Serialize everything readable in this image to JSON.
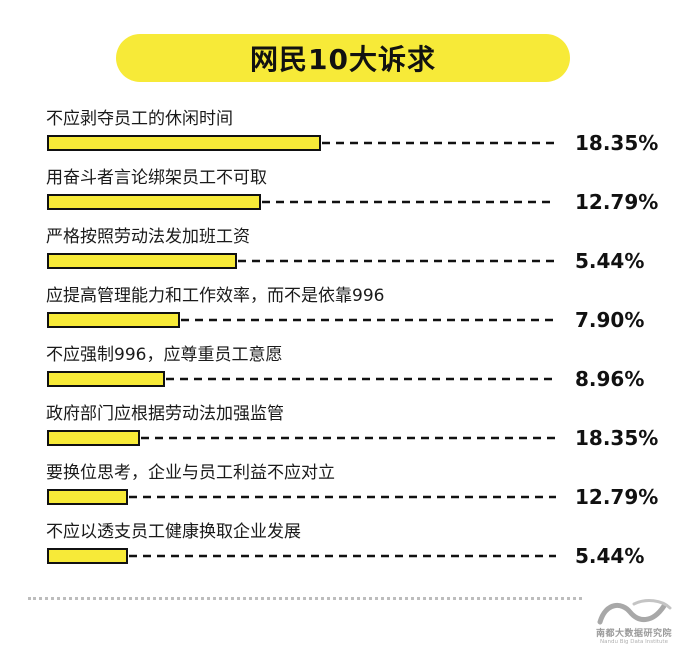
{
  "chart_data": {
    "type": "bar",
    "orientation": "horizontal",
    "title": "网民10大诉求",
    "categories": [
      "不应剥夺员工的休闲时间",
      "用奋斗者言论绑架员工不可取",
      "严格按照劳动法发加班工资",
      "应提高管理能力和工作效率，而不是依靠996",
      "不应强制996，应尊重员工意愿",
      "政府部门应根据劳动法加强监管",
      "要换位思考，企业与员工利益不应对立",
      "不应以透支员工健康换取企业发展"
    ],
    "values": [
      18.35,
      12.79,
      5.44,
      7.9,
      8.96,
      18.35,
      12.79,
      5.44
    ],
    "value_labels": [
      "18.35%",
      "12.79%",
      "5.44%",
      "7.90%",
      "8.96%",
      "18.35%",
      "12.79%",
      "5.44%"
    ],
    "unit": "%",
    "colors": {
      "bar": "#f7ea38",
      "outline": "#111111",
      "title_bg": "#f7ea38"
    }
  },
  "logo": {
    "icon": "wave-logo-icon",
    "name_cn": "南都大数据研究院",
    "name_en": "Nandu Big Data Institute"
  }
}
